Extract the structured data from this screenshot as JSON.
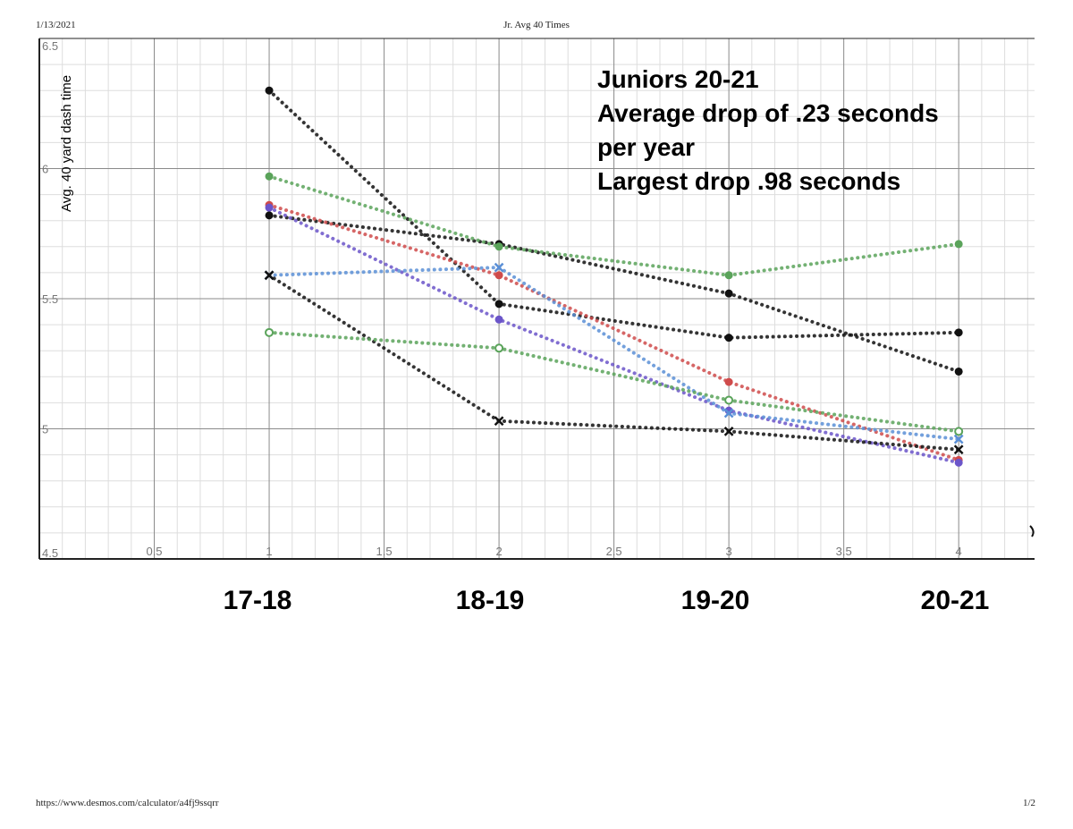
{
  "page": {
    "date": "1/13/2021",
    "title": "Jr. Avg 40 Times",
    "url": "https://www.desmos.com/calculator/a4fj9ssqrr",
    "page_num": "1/2"
  },
  "annotation": {
    "lines": [
      "Juniors 20-21",
      "Average drop of .23 seconds",
      "per year",
      "Largest drop .98 seconds"
    ]
  },
  "seasons": [
    "17-18",
    "18-19",
    "19-20",
    "20-21"
  ],
  "colors": {
    "black": "#111111",
    "green": "#5aa35a",
    "red": "#cf4b4b",
    "purple": "#6b55c9",
    "blue": "#5a8fd6",
    "grid_major": "#8a8a8a",
    "grid_minor": "#dddddd"
  },
  "chart_data": {
    "type": "line",
    "ylabel": "Avg. 40 yard dash time",
    "xlabel": "",
    "xlim": [
      0,
      4.33
    ],
    "ylim": [
      4.5,
      6.5
    ],
    "x_ticks": [
      "0.5",
      "1",
      "1.5",
      "2",
      "2.5",
      "3",
      "3.5",
      "4"
    ],
    "y_ticks": [
      "4.5",
      "5",
      "5.5",
      "6",
      "6.5"
    ],
    "grid": true,
    "series": [
      {
        "color": "black",
        "marker": "dot",
        "points": [
          [
            1,
            6.3
          ],
          [
            2,
            5.48
          ],
          [
            3,
            5.35
          ],
          [
            4,
            5.37
          ]
        ]
      },
      {
        "color": "black",
        "marker": "dot",
        "points": [
          [
            1,
            5.82
          ],
          [
            2,
            5.71
          ],
          [
            3,
            5.52
          ],
          [
            4,
            5.22
          ]
        ]
      },
      {
        "color": "green",
        "marker": "dot",
        "points": [
          [
            1,
            5.97
          ],
          [
            2,
            5.7
          ],
          [
            3,
            5.59
          ],
          [
            4,
            5.71
          ]
        ]
      },
      {
        "color": "red",
        "marker": "dot",
        "points": [
          [
            1,
            5.86
          ],
          [
            2,
            5.59
          ],
          [
            3,
            5.18
          ],
          [
            4,
            4.88
          ]
        ]
      },
      {
        "color": "purple",
        "marker": "dot",
        "points": [
          [
            1,
            5.85
          ],
          [
            2,
            5.42
          ],
          [
            3,
            5.07
          ],
          [
            4,
            4.87
          ]
        ]
      },
      {
        "color": "blue",
        "marker": "x",
        "points": [
          [
            1,
            5.59
          ],
          [
            2,
            5.62
          ],
          [
            3,
            5.06
          ],
          [
            4,
            4.96
          ]
        ]
      },
      {
        "color": "black",
        "marker": "x",
        "points": [
          [
            1,
            5.59
          ],
          [
            2,
            5.03
          ],
          [
            3,
            4.99
          ],
          [
            4,
            4.92
          ]
        ]
      },
      {
        "color": "green",
        "marker": "ring",
        "points": [
          [
            1,
            5.37
          ],
          [
            2,
            5.31
          ],
          [
            3,
            5.11
          ],
          [
            4,
            4.99
          ]
        ]
      }
    ]
  }
}
